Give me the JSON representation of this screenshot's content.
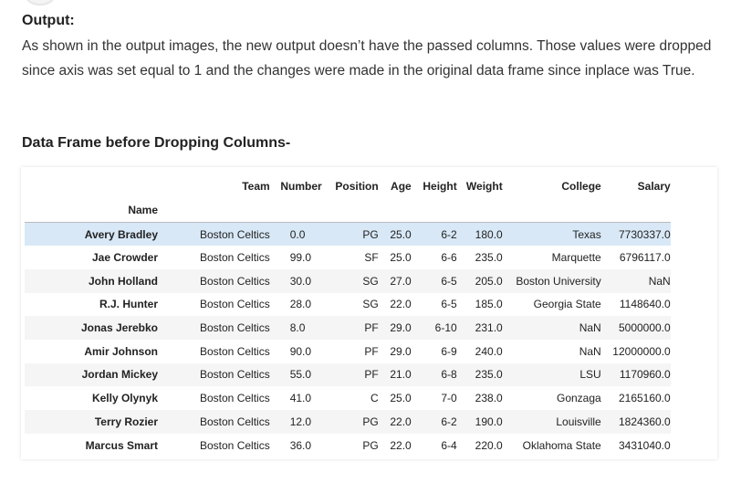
{
  "output_heading": "Output:",
  "output_paragraph": "As shown in the output images, the new output doesn’t have the passed columns. Those values were dropped since axis was set equal to 1 and the changes were made in the original data frame since inplace was True.",
  "table_title": "Data Frame before Dropping Columns-",
  "table": {
    "index_name": "Name",
    "columns": [
      "Team",
      "Number",
      "Position",
      "Age",
      "Height",
      "Weight",
      "College",
      "Salary"
    ],
    "highlighted_row": 0,
    "rows": [
      {
        "name": "Avery Bradley",
        "team": "Boston Celtics",
        "number": "0.0",
        "position": "PG",
        "age": "25.0",
        "height": "6-2",
        "weight": "180.0",
        "college": "Texas",
        "salary": "7730337.0"
      },
      {
        "name": "Jae Crowder",
        "team": "Boston Celtics",
        "number": "99.0",
        "position": "SF",
        "age": "25.0",
        "height": "6-6",
        "weight": "235.0",
        "college": "Marquette",
        "salary": "6796117.0"
      },
      {
        "name": "John Holland",
        "team": "Boston Celtics",
        "number": "30.0",
        "position": "SG",
        "age": "27.0",
        "height": "6-5",
        "weight": "205.0",
        "college": "Boston University",
        "salary": "NaN"
      },
      {
        "name": "R.J. Hunter",
        "team": "Boston Celtics",
        "number": "28.0",
        "position": "SG",
        "age": "22.0",
        "height": "6-5",
        "weight": "185.0",
        "college": "Georgia State",
        "salary": "1148640.0"
      },
      {
        "name": "Jonas Jerebko",
        "team": "Boston Celtics",
        "number": "8.0",
        "position": "PF",
        "age": "29.0",
        "height": "6-10",
        "weight": "231.0",
        "college": "NaN",
        "salary": "5000000.0"
      },
      {
        "name": "Amir Johnson",
        "team": "Boston Celtics",
        "number": "90.0",
        "position": "PF",
        "age": "29.0",
        "height": "6-9",
        "weight": "240.0",
        "college": "NaN",
        "salary": "12000000.0"
      },
      {
        "name": "Jordan Mickey",
        "team": "Boston Celtics",
        "number": "55.0",
        "position": "PF",
        "age": "21.0",
        "height": "6-8",
        "weight": "235.0",
        "college": "LSU",
        "salary": "1170960.0"
      },
      {
        "name": "Kelly Olynyk",
        "team": "Boston Celtics",
        "number": "41.0",
        "position": "C",
        "age": "25.0",
        "height": "7-0",
        "weight": "238.0",
        "college": "Gonzaga",
        "salary": "2165160.0"
      },
      {
        "name": "Terry Rozier",
        "team": "Boston Celtics",
        "number": "12.0",
        "position": "PG",
        "age": "22.0",
        "height": "6-2",
        "weight": "190.0",
        "college": "Louisville",
        "salary": "1824360.0"
      },
      {
        "name": "Marcus Smart",
        "team": "Boston Celtics",
        "number": "36.0",
        "position": "PG",
        "age": "22.0",
        "height": "6-4",
        "weight": "220.0",
        "college": "Oklahoma State",
        "salary": "3431040.0"
      }
    ]
  }
}
